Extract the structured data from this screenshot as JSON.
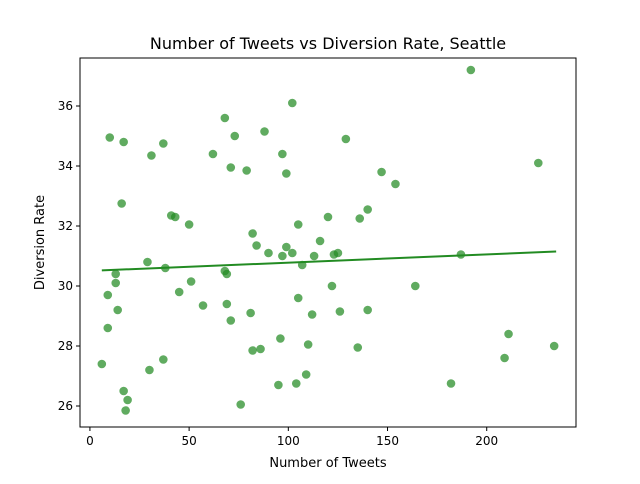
{
  "chart_data": {
    "type": "scatter",
    "title": "Number of Tweets vs Diversion Rate, Seattle",
    "xlabel": "Number of Tweets",
    "ylabel": "Diversion Rate",
    "xlim": [
      -5,
      245
    ],
    "ylim": [
      25.3,
      37.6
    ],
    "xticks": [
      0,
      50,
      100,
      150,
      200
    ],
    "yticks": [
      26,
      28,
      30,
      32,
      34,
      36
    ],
    "grid": false,
    "legend": "none",
    "colors": {
      "points": "#228b22",
      "trend": "#228b22"
    },
    "trend_line": {
      "x": [
        6,
        235
      ],
      "y": [
        30.52,
        31.15
      ]
    },
    "points": [
      {
        "x": 6,
        "y": 27.4
      },
      {
        "x": 9,
        "y": 29.7
      },
      {
        "x": 9,
        "y": 28.6
      },
      {
        "x": 10,
        "y": 34.95
      },
      {
        "x": 13,
        "y": 30.4
      },
      {
        "x": 13,
        "y": 30.1
      },
      {
        "x": 14,
        "y": 29.2
      },
      {
        "x": 16,
        "y": 32.75
      },
      {
        "x": 17,
        "y": 34.8
      },
      {
        "x": 17,
        "y": 26.5
      },
      {
        "x": 18,
        "y": 25.85
      },
      {
        "x": 19,
        "y": 26.2
      },
      {
        "x": 29,
        "y": 30.8
      },
      {
        "x": 30,
        "y": 27.2
      },
      {
        "x": 31,
        "y": 34.35
      },
      {
        "x": 37,
        "y": 34.75
      },
      {
        "x": 37,
        "y": 27.55
      },
      {
        "x": 38,
        "y": 30.6
      },
      {
        "x": 41,
        "y": 32.35
      },
      {
        "x": 43,
        "y": 32.3
      },
      {
        "x": 45,
        "y": 29.8
      },
      {
        "x": 50,
        "y": 32.05
      },
      {
        "x": 51,
        "y": 30.15
      },
      {
        "x": 57,
        "y": 29.35
      },
      {
        "x": 62,
        "y": 34.4
      },
      {
        "x": 68,
        "y": 35.6
      },
      {
        "x": 68,
        "y": 30.5
      },
      {
        "x": 69,
        "y": 30.4
      },
      {
        "x": 69,
        "y": 29.4
      },
      {
        "x": 71,
        "y": 33.95
      },
      {
        "x": 71,
        "y": 28.85
      },
      {
        "x": 73,
        "y": 35.0
      },
      {
        "x": 76,
        "y": 26.05
      },
      {
        "x": 79,
        "y": 33.85
      },
      {
        "x": 81,
        "y": 29.1
      },
      {
        "x": 82,
        "y": 31.75
      },
      {
        "x": 82,
        "y": 27.85
      },
      {
        "x": 84,
        "y": 31.35
      },
      {
        "x": 86,
        "y": 27.9
      },
      {
        "x": 88,
        "y": 35.15
      },
      {
        "x": 90,
        "y": 31.1
      },
      {
        "x": 95,
        "y": 26.7
      },
      {
        "x": 96,
        "y": 28.25
      },
      {
        "x": 97,
        "y": 34.4
      },
      {
        "x": 97,
        "y": 31.0
      },
      {
        "x": 99,
        "y": 33.75
      },
      {
        "x": 99,
        "y": 31.3
      },
      {
        "x": 102,
        "y": 36.1
      },
      {
        "x": 102,
        "y": 31.1
      },
      {
        "x": 104,
        "y": 26.75
      },
      {
        "x": 105,
        "y": 32.05
      },
      {
        "x": 105,
        "y": 29.6
      },
      {
        "x": 107,
        "y": 30.7
      },
      {
        "x": 109,
        "y": 27.05
      },
      {
        "x": 110,
        "y": 28.05
      },
      {
        "x": 112,
        "y": 29.05
      },
      {
        "x": 113,
        "y": 31.0
      },
      {
        "x": 116,
        "y": 31.5
      },
      {
        "x": 120,
        "y": 32.3
      },
      {
        "x": 122,
        "y": 30.0
      },
      {
        "x": 123,
        "y": 31.05
      },
      {
        "x": 125,
        "y": 31.1
      },
      {
        "x": 126,
        "y": 29.15
      },
      {
        "x": 129,
        "y": 34.9
      },
      {
        "x": 135,
        "y": 27.95
      },
      {
        "x": 136,
        "y": 32.25
      },
      {
        "x": 140,
        "y": 32.55
      },
      {
        "x": 140,
        "y": 29.2
      },
      {
        "x": 147,
        "y": 33.8
      },
      {
        "x": 154,
        "y": 33.4
      },
      {
        "x": 164,
        "y": 30.0
      },
      {
        "x": 182,
        "y": 26.75
      },
      {
        "x": 187,
        "y": 31.05
      },
      {
        "x": 192,
        "y": 37.2
      },
      {
        "x": 209,
        "y": 27.6
      },
      {
        "x": 211,
        "y": 28.4
      },
      {
        "x": 226,
        "y": 34.1
      },
      {
        "x": 234,
        "y": 28.0
      }
    ]
  }
}
